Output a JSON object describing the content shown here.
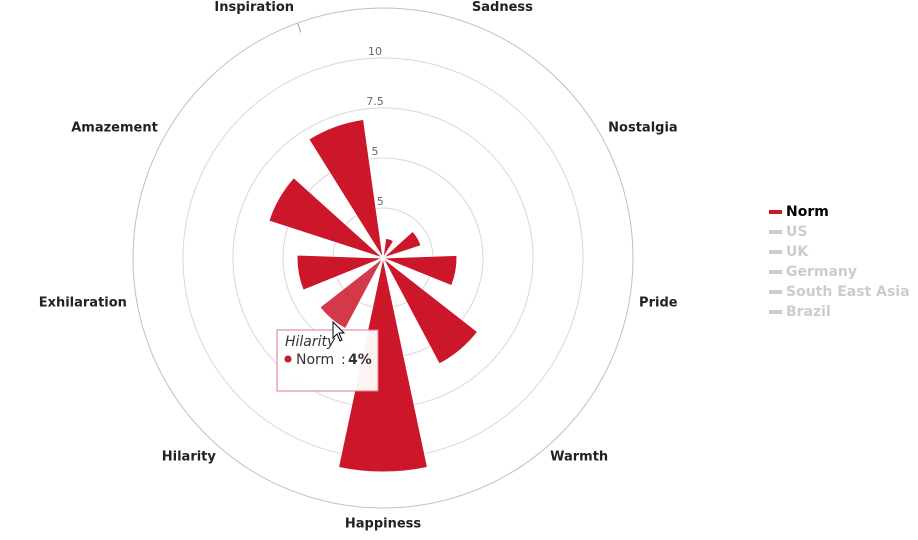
{
  "chart_data": {
    "type": "polar-bar",
    "categories": [
      "Inspiration",
      "Sadness",
      "Nostalgia",
      "Pride",
      "Warmth",
      "Happiness",
      "Hilarity",
      "Exhilaration",
      "Amazement"
    ],
    "series": [
      {
        "name": "Norm",
        "color": "#cc1629",
        "visible": true,
        "values": [
          7,
          1,
          2,
          3.7,
          6,
          10.7,
          4,
          4.3,
          6
        ]
      },
      {
        "name": "US",
        "color": "#cccccc",
        "visible": false
      },
      {
        "name": "UK",
        "color": "#cccccc",
        "visible": false
      },
      {
        "name": "Germany",
        "color": "#cccccc",
        "visible": false
      },
      {
        "name": "South East Asia",
        "color": "#cccccc",
        "visible": false
      },
      {
        "name": "Brazil",
        "color": "#cccccc",
        "visible": false
      }
    ],
    "ylim": [
      0,
      12.5
    ],
    "yticks": [
      2.5,
      5,
      7.5,
      10
    ],
    "grid": true,
    "legend": "right",
    "tooltip": {
      "separator": ":",
      "value_label": "4%"
    }
  }
}
